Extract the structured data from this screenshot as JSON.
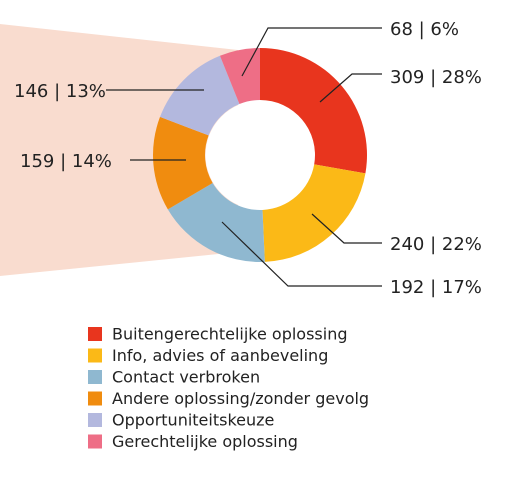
{
  "chart_data": {
    "type": "donut",
    "categories": [
      "Buitengerechtelijke oplossing",
      "Info, advies of aanbeveling",
      "Contact verbroken",
      "Andere oplossing/zonder gevolg",
      "Opportuniteitskeuze",
      "Gerechtelijke oplossing"
    ],
    "values": [
      309,
      240,
      192,
      159,
      146,
      68
    ],
    "value_labels": [
      "309 | 28%",
      "240 | 22%",
      "192 | 17%",
      "159 | 14%",
      "146 | 13%",
      "68 | 6%"
    ],
    "colors": [
      "#e8351e",
      "#fbb917",
      "#8fb8d0",
      "#f08c0f",
      "#b3b8de",
      "#ee6e86"
    ]
  }
}
